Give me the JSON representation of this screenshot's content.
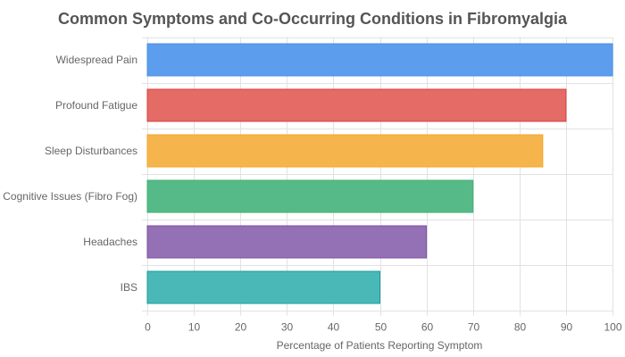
{
  "chart_data": {
    "type": "bar",
    "orientation": "horizontal",
    "title": "Common Symptoms and Co-Occurring Conditions in Fibromyalgia",
    "xlabel": "Percentage of Patients Reporting Symptom",
    "ylabel": "",
    "xlim": [
      0,
      100
    ],
    "xticks": [
      0,
      10,
      20,
      30,
      40,
      50,
      60,
      70,
      80,
      90,
      100
    ],
    "grid": true,
    "categories": [
      "Widespread Pain",
      "Profound Fatigue",
      "Sleep Disturbances",
      "Cognitive Issues (Fibro Fog)",
      "Headaches",
      "IBS"
    ],
    "values": [
      100,
      90,
      85,
      70,
      60,
      50
    ],
    "colors": [
      {
        "fill": "#5c9ded",
        "border": "#4a90e2"
      },
      {
        "fill": "#e56b66",
        "border": "#d9413b"
      },
      {
        "fill": "#f5b54c",
        "border": "#f5a623"
      },
      {
        "fill": "#56ba88",
        "border": "#3cb371"
      },
      {
        "fill": "#9470b4",
        "border": "#7d4fa6"
      },
      {
        "fill": "#4bb8b8",
        "border": "#1a9c9c"
      }
    ]
  }
}
